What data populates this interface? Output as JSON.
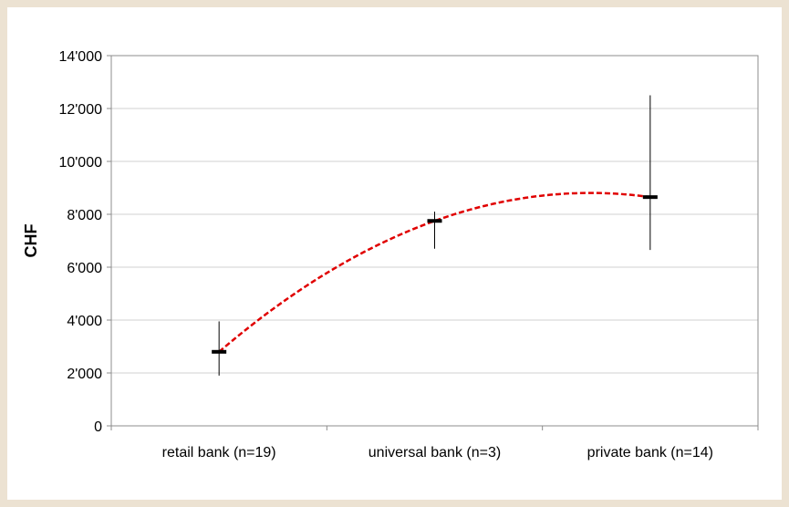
{
  "chart_data": {
    "type": "scatter",
    "title": "",
    "xlabel": "",
    "ylabel": "CHF",
    "ylim": [
      0,
      14000
    ],
    "yticks": [
      0,
      2000,
      4000,
      6000,
      8000,
      10000,
      12000,
      14000
    ],
    "ytick_labels": [
      "0",
      "2'000",
      "4'000",
      "6'000",
      "8'000",
      "10'000",
      "12'000",
      "14'000"
    ],
    "categories": [
      "retail bank (n=19)",
      "universal bank (n=3)",
      "private bank (n=14)"
    ],
    "grid": true,
    "legend": "none",
    "series": [
      {
        "marker": "bar",
        "values": [
          2800,
          7750,
          8650
        ],
        "low": [
          1900,
          6700,
          6650
        ],
        "high": [
          3950,
          8100,
          12500
        ],
        "color": "#000000"
      },
      {
        "style": "dashed-trendline",
        "color": "#e00000",
        "values": [
          2800,
          7750,
          8650
        ]
      }
    ]
  }
}
